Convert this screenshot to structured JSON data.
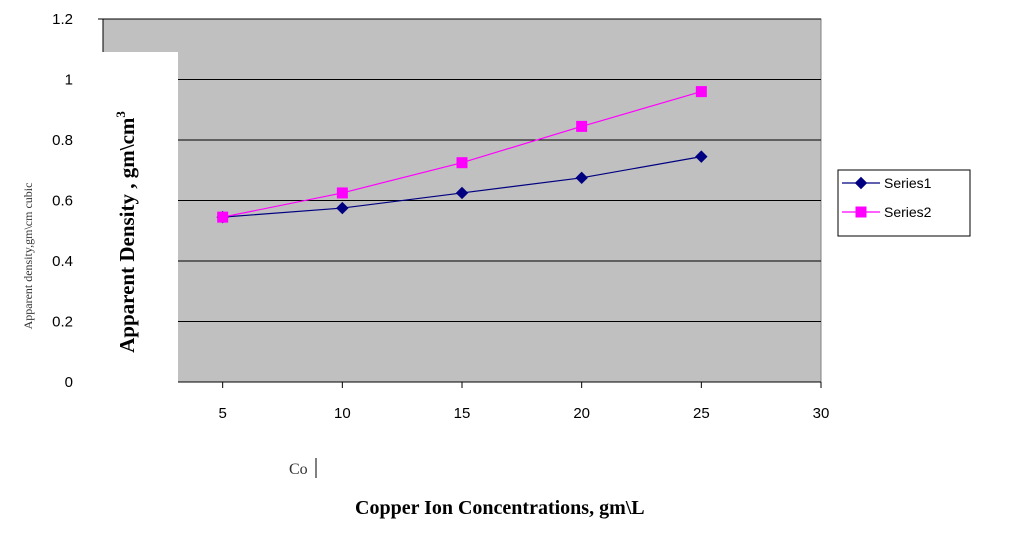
{
  "chart_data": {
    "type": "line",
    "x": [
      5,
      10,
      15,
      20,
      25
    ],
    "series": [
      {
        "name": "Series1",
        "values": [
          0.545,
          0.575,
          0.625,
          0.675,
          0.745
        ],
        "color": "#000080",
        "marker": "diamond"
      },
      {
        "name": "Series2",
        "values": [
          0.545,
          0.625,
          0.725,
          0.845,
          0.96
        ],
        "color": "#ff00ff",
        "marker": "square"
      }
    ],
    "xlim": [
      0,
      30
    ],
    "ylim": [
      0,
      1.2
    ],
    "xticks": [
      "5",
      "10",
      "15",
      "20",
      "25",
      "30"
    ],
    "yticks": [
      "0",
      "0.2",
      "0.4",
      "0.6",
      "0.8",
      "1",
      "1.2"
    ],
    "ylabel_original": "Apparent density,gm\\cm cubic",
    "ylabel_overlay": "Apparent Density , gm\\cm",
    "ylabel_overlay_sup": "3",
    "xlabel_fragment": "Co",
    "xlabel": "Copper  Ion Concentrations, gm\\L",
    "grid": true,
    "plot_bg": "#c0c0c0",
    "legend_position": "right"
  }
}
